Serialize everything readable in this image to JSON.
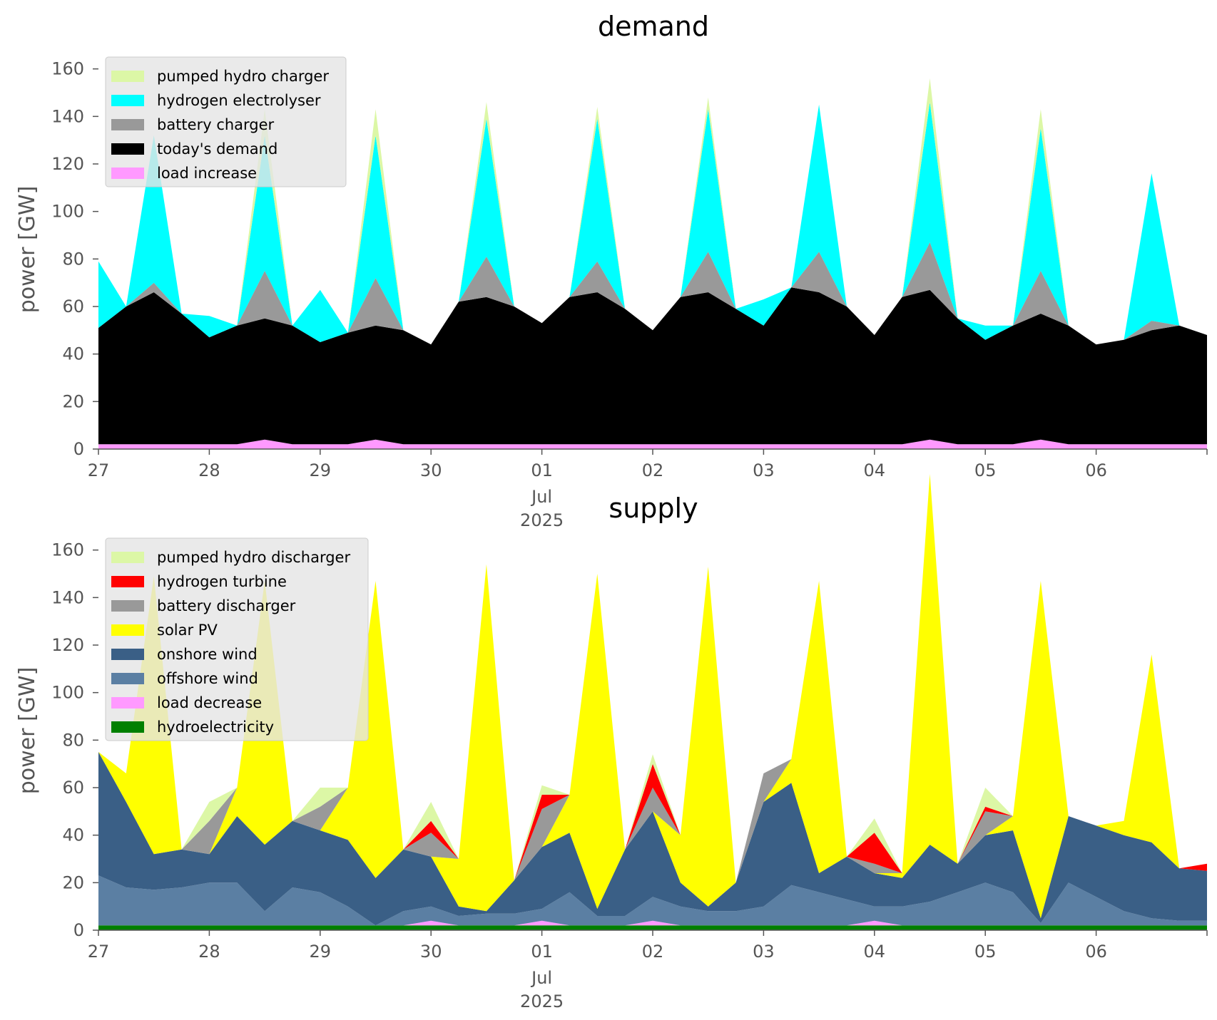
{
  "chart_data": [
    {
      "type": "area",
      "title": "demand",
      "ylabel": "power [GW]",
      "xlabel": "",
      "ylim": [
        0,
        165
      ],
      "xlim": [
        "2025-06-27",
        "2025-07-07"
      ],
      "grid": false,
      "legend_position": "top-left",
      "x_tick_labels": [
        "27",
        "28",
        "29",
        "30",
        "01",
        "02",
        "03",
        "04",
        "05",
        "06"
      ],
      "x_tick_sublabels": [
        "Jul",
        "2025"
      ],
      "y_ticks": [
        0,
        20,
        40,
        60,
        80,
        100,
        120,
        140,
        160
      ],
      "x": [
        "2025-06-27 00:00",
        "2025-06-27 06:00",
        "2025-06-27 12:00",
        "2025-06-27 18:00",
        "2025-06-28 00:00",
        "2025-06-28 06:00",
        "2025-06-28 12:00",
        "2025-06-28 18:00",
        "2025-06-29 00:00",
        "2025-06-29 06:00",
        "2025-06-29 12:00",
        "2025-06-29 18:00",
        "2025-06-30 00:00",
        "2025-06-30 06:00",
        "2025-06-30 12:00",
        "2025-06-30 18:00",
        "2025-07-01 00:00",
        "2025-07-01 06:00",
        "2025-07-01 12:00",
        "2025-07-01 18:00",
        "2025-07-02 00:00",
        "2025-07-02 06:00",
        "2025-07-02 12:00",
        "2025-07-02 18:00",
        "2025-07-03 00:00",
        "2025-07-03 06:00",
        "2025-07-03 12:00",
        "2025-07-03 18:00",
        "2025-07-04 00:00",
        "2025-07-04 06:00",
        "2025-07-04 12:00",
        "2025-07-04 18:00",
        "2025-07-05 00:00",
        "2025-07-05 06:00",
        "2025-07-05 12:00",
        "2025-07-05 18:00",
        "2025-07-06 00:00",
        "2025-07-06 06:00",
        "2025-07-06 12:00",
        "2025-07-06 18:00",
        "2025-07-07 00:00"
      ],
      "series": [
        {
          "name": "load increase",
          "color": "#ff99ff",
          "values": [
            2,
            2,
            2,
            2,
            2,
            2,
            4,
            2,
            2,
            2,
            4,
            2,
            2,
            2,
            2,
            2,
            2,
            2,
            2,
            2,
            2,
            2,
            2,
            2,
            2,
            2,
            2,
            2,
            2,
            2,
            4,
            2,
            2,
            2,
            4,
            2,
            2,
            2,
            2,
            2,
            2
          ]
        },
        {
          "name": "today's demand",
          "color": "#000000",
          "values": [
            49,
            58,
            64,
            55,
            45,
            50,
            51,
            50,
            43,
            47,
            48,
            48,
            42,
            60,
            62,
            58,
            51,
            62,
            64,
            57,
            48,
            62,
            64,
            57,
            50,
            66,
            64,
            58,
            46,
            62,
            63,
            53,
            44,
            50,
            53,
            50,
            42,
            44,
            48,
            50,
            46
          ]
        },
        {
          "name": "battery charger",
          "color": "#999999",
          "values": [
            0,
            0,
            4,
            0,
            0,
            0,
            20,
            0,
            0,
            0,
            20,
            0,
            0,
            0,
            17,
            0,
            0,
            0,
            13,
            0,
            0,
            0,
            17,
            0,
            0,
            0,
            17,
            0,
            0,
            0,
            20,
            0,
            0,
            0,
            18,
            0,
            0,
            0,
            4,
            0,
            0
          ]
        },
        {
          "name": "hydrogen electrolyser",
          "color": "#00ffff",
          "values": [
            28,
            0,
            62,
            0,
            9,
            0,
            57,
            0,
            22,
            0,
            60,
            0,
            0,
            0,
            58,
            0,
            0,
            0,
            60,
            0,
            0,
            0,
            60,
            0,
            11,
            0,
            62,
            0,
            0,
            0,
            59,
            0,
            6,
            0,
            60,
            0,
            0,
            0,
            62,
            0,
            0
          ]
        },
        {
          "name": "pumped hydro charger",
          "color": "#dcf7a6",
          "values": [
            0,
            0,
            0,
            0,
            0,
            0,
            11,
            0,
            0,
            0,
            11,
            0,
            0,
            0,
            7,
            0,
            0,
            0,
            5,
            0,
            0,
            0,
            5,
            0,
            0,
            0,
            0,
            0,
            0,
            0,
            10,
            0,
            0,
            0,
            8,
            0,
            0,
            0,
            0,
            0,
            0
          ]
        }
      ]
    },
    {
      "type": "area",
      "title": "supply",
      "ylabel": "power [GW]",
      "xlabel": "",
      "ylim": [
        0,
        165
      ],
      "xlim": [
        "2025-06-27",
        "2025-07-07"
      ],
      "grid": false,
      "legend_position": "top-left",
      "x_tick_labels": [
        "27",
        "28",
        "29",
        "30",
        "01",
        "02",
        "03",
        "04",
        "05",
        "06"
      ],
      "x_tick_sublabels": [
        "Jul",
        "2025"
      ],
      "y_ticks": [
        0,
        20,
        40,
        60,
        80,
        100,
        120,
        140,
        160
      ],
      "x": [
        "2025-06-27 00:00",
        "2025-06-27 06:00",
        "2025-06-27 12:00",
        "2025-06-27 18:00",
        "2025-06-28 00:00",
        "2025-06-28 06:00",
        "2025-06-28 12:00",
        "2025-06-28 18:00",
        "2025-06-29 00:00",
        "2025-06-29 06:00",
        "2025-06-29 12:00",
        "2025-06-29 18:00",
        "2025-06-30 00:00",
        "2025-06-30 06:00",
        "2025-06-30 12:00",
        "2025-06-30 18:00",
        "2025-07-01 00:00",
        "2025-07-01 06:00",
        "2025-07-01 12:00",
        "2025-07-01 18:00",
        "2025-07-02 00:00",
        "2025-07-02 06:00",
        "2025-07-02 12:00",
        "2025-07-02 18:00",
        "2025-07-03 00:00",
        "2025-07-03 06:00",
        "2025-07-03 12:00",
        "2025-07-03 18:00",
        "2025-07-04 00:00",
        "2025-07-04 06:00",
        "2025-07-04 12:00",
        "2025-07-04 18:00",
        "2025-07-05 00:00",
        "2025-07-05 06:00",
        "2025-07-05 12:00",
        "2025-07-05 18:00",
        "2025-07-06 00:00",
        "2025-07-06 06:00",
        "2025-07-06 12:00",
        "2025-07-06 18:00",
        "2025-07-07 00:00"
      ],
      "series": [
        {
          "name": "hydroelectricity",
          "color": "#008000",
          "values": [
            2,
            2,
            2,
            2,
            2,
            2,
            2,
            2,
            2,
            2,
            2,
            2,
            2,
            2,
            2,
            2,
            2,
            2,
            2,
            2,
            2,
            2,
            2,
            2,
            2,
            2,
            2,
            2,
            2,
            2,
            2,
            2,
            2,
            2,
            2,
            2,
            2,
            2,
            2,
            2,
            2
          ]
        },
        {
          "name": "load decrease",
          "color": "#ff99ff",
          "values": [
            0,
            0,
            0,
            0,
            0,
            0,
            0,
            0,
            0,
            0,
            0,
            0,
            2,
            0,
            0,
            0,
            2,
            0,
            0,
            0,
            2,
            0,
            0,
            0,
            0,
            0,
            0,
            0,
            2,
            0,
            0,
            0,
            0,
            0,
            0,
            0,
            0,
            0,
            0,
            0,
            0
          ]
        },
        {
          "name": "offshore wind",
          "color": "#5b7fa3",
          "values": [
            21,
            16,
            15,
            16,
            18,
            18,
            6,
            16,
            14,
            8,
            0,
            6,
            6,
            4,
            5,
            5,
            5,
            14,
            4,
            4,
            10,
            8,
            6,
            6,
            8,
            17,
            14,
            11,
            6,
            8,
            10,
            14,
            18,
            14,
            1,
            18,
            12,
            6,
            3,
            2,
            2
          ]
        },
        {
          "name": "onshore wind",
          "color": "#3a5f86",
          "values": [
            52,
            36,
            15,
            16,
            12,
            28,
            28,
            28,
            26,
            28,
            20,
            26,
            21,
            4,
            1,
            14,
            26,
            25,
            3,
            28,
            36,
            10,
            2,
            12,
            44,
            43,
            8,
            18,
            14,
            12,
            24,
            12,
            20,
            26,
            2,
            28,
            30,
            32,
            32,
            22,
            21
          ]
        },
        {
          "name": "solar PV",
          "color": "#ffff00",
          "values": [
            0,
            12,
            117,
            0,
            0,
            12,
            111,
            0,
            0,
            22,
            125,
            0,
            0,
            20,
            146,
            0,
            0,
            16,
            141,
            0,
            0,
            20,
            143,
            0,
            0,
            10,
            123,
            0,
            0,
            2,
            156,
            0,
            0,
            6,
            142,
            0,
            0,
            6,
            79,
            0,
            0
          ]
        },
        {
          "name": "battery discharger",
          "color": "#999999",
          "values": [
            0,
            0,
            0,
            0,
            14,
            0,
            0,
            0,
            10,
            0,
            0,
            0,
            10,
            0,
            0,
            0,
            16,
            0,
            0,
            0,
            10,
            0,
            0,
            0,
            12,
            0,
            0,
            0,
            4,
            0,
            0,
            0,
            10,
            0,
            0,
            0,
            0,
            0,
            0,
            0,
            0
          ]
        },
        {
          "name": "hydrogen turbine",
          "color": "#ff0000",
          "values": [
            0,
            0,
            0,
            0,
            0,
            0,
            0,
            0,
            0,
            0,
            0,
            0,
            5,
            0,
            0,
            0,
            6,
            0,
            0,
            0,
            10,
            0,
            0,
            0,
            0,
            0,
            0,
            0,
            13,
            0,
            0,
            0,
            2,
            0,
            0,
            0,
            0,
            0,
            0,
            0,
            3
          ]
        },
        {
          "name": "pumped hydro discharger",
          "color": "#dcf7a6",
          "values": [
            0,
            0,
            0,
            0,
            8,
            0,
            0,
            0,
            8,
            0,
            0,
            0,
            8,
            0,
            0,
            0,
            4,
            0,
            0,
            0,
            4,
            0,
            0,
            0,
            0,
            0,
            0,
            0,
            6,
            0,
            0,
            0,
            8,
            0,
            0,
            0,
            0,
            0,
            0,
            0,
            0
          ]
        }
      ]
    }
  ]
}
